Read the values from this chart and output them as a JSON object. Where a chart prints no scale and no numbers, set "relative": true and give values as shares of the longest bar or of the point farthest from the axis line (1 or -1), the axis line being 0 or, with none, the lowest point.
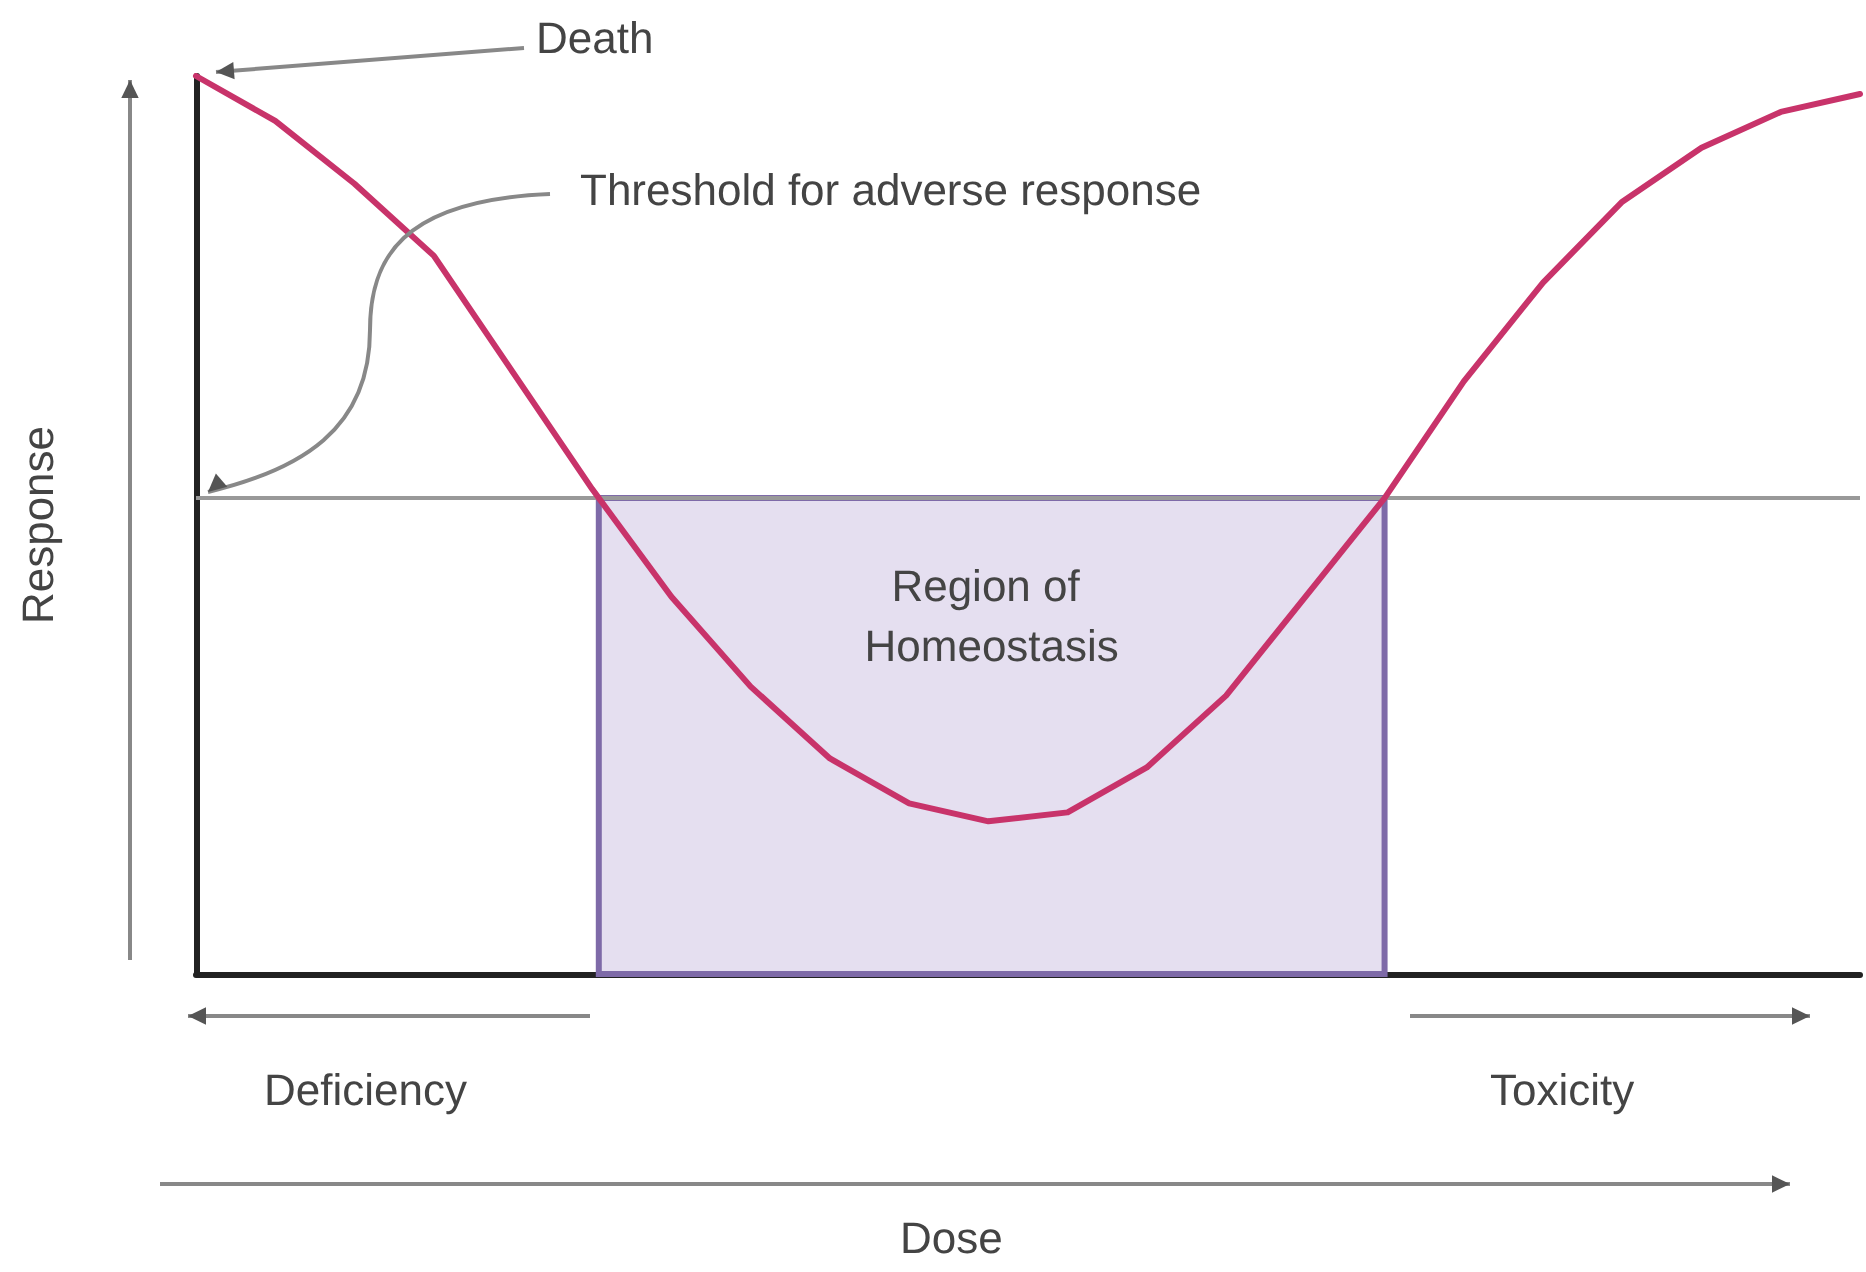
{
  "chart_data": {
    "type": "line",
    "relative": true,
    "ylabel": "Response",
    "categories": [
      null,
      null,
      null,
      null,
      null,
      null,
      null,
      null,
      null,
      null,
      null,
      null,
      null,
      null,
      null,
      null,
      null,
      null,
      null,
      null,
      null,
      null
    ],
    "series": [
      {
        "color": "#c8336a",
        "values": [
          1.0,
          0.95,
          0.88,
          0.8,
          0.67,
          0.54,
          0.42,
          0.32,
          0.24,
          0.19,
          0.17,
          0.18,
          0.23,
          0.31,
          0.42,
          0.53,
          0.66,
          0.77,
          0.86,
          0.92,
          0.96,
          0.98
        ]
      }
    ],
    "ref_lines": [
      {
        "axis": "y",
        "value": 0.53,
        "label": "Threshold for adverse response",
        "color": "#999999"
      }
    ],
    "bands": [
      {
        "axis": "y",
        "from": 0,
        "to": 0.53,
        "label": "Region of Homeostasis",
        "color": "#e5dff0"
      }
    ],
    "annotations": [
      "Death",
      "Deficiency",
      "Toxicity",
      "Dose"
    ],
    "grid": false,
    "marker": "none",
    "line_style": "solid"
  }
}
